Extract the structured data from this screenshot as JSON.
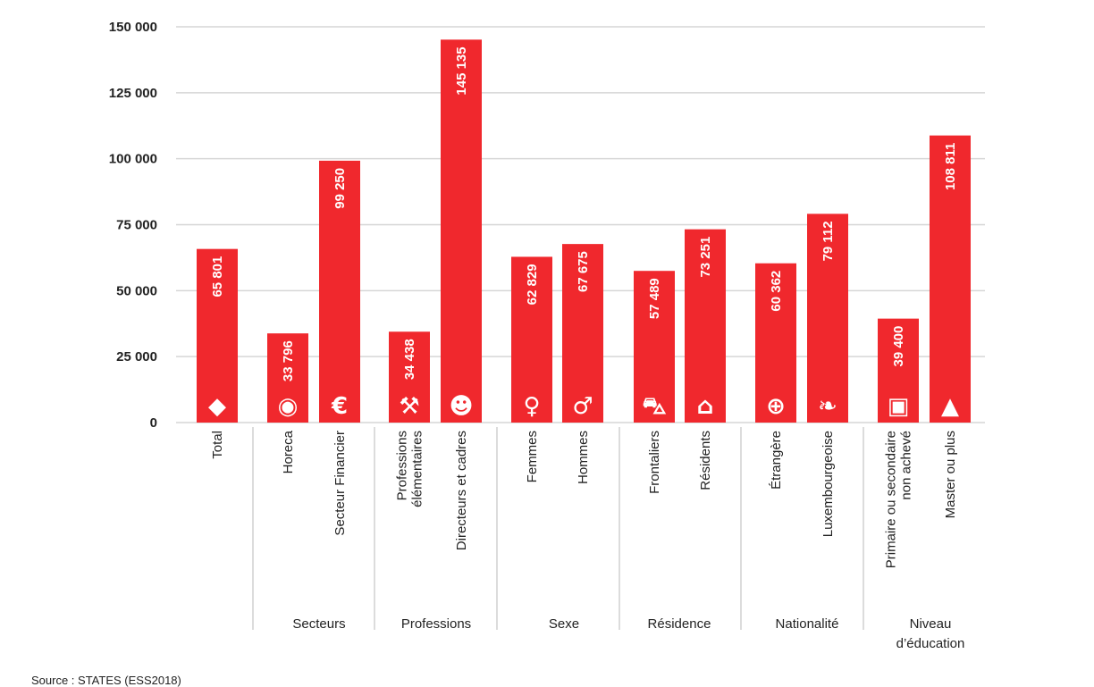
{
  "chart_data": {
    "type": "bar",
    "title": "",
    "xlabel": "",
    "ylabel": "",
    "ylim": [
      0,
      150000
    ],
    "yticks": [
      0,
      25000,
      50000,
      75000,
      100000,
      125000,
      150000
    ],
    "ytick_labels": [
      "0",
      "25 000",
      "50 000",
      "75 000",
      "100 000",
      "125 000",
      "150 000"
    ],
    "grid": true,
    "bar_color": "#f0282d",
    "categories": [
      {
        "label": [
          "Total"
        ],
        "value": 65801,
        "value_label": "65 801",
        "icon": "luxembourg-map-icon",
        "bold": true,
        "group": 0
      },
      {
        "label": [
          "Horeca"
        ],
        "value": 33796,
        "value_label": "33 796",
        "icon": "plate-cutlery-icon",
        "group": 1
      },
      {
        "label": [
          "Secteur Financier"
        ],
        "value": 99250,
        "value_label": "99 250",
        "icon": "euro-icon",
        "group": 1
      },
      {
        "label": [
          "Professions",
          "élémentaires"
        ],
        "value": 34438,
        "value_label": "34 438",
        "icon": "tools-icon",
        "group": 2
      },
      {
        "label": [
          "Directeurs et cadres"
        ],
        "value": 145135,
        "value_label": "145 135",
        "icon": "manager-icon",
        "group": 2
      },
      {
        "label": [
          "Femmes"
        ],
        "value": 62829,
        "value_label": "62 829",
        "icon": "female-icon",
        "group": 3
      },
      {
        "label": [
          "Hommes"
        ],
        "value": 67675,
        "value_label": "67 675",
        "icon": "male-icon",
        "group": 3
      },
      {
        "label": [
          "Frontaliers"
        ],
        "value": 57489,
        "value_label": "57 489",
        "icon": "car-icon",
        "group": 4
      },
      {
        "label": [
          "Résidents"
        ],
        "value": 73251,
        "value_label": "73 251",
        "icon": "house-icon",
        "group": 4
      },
      {
        "label": [
          "Étrangère"
        ],
        "value": 60362,
        "value_label": "60 362",
        "icon": "globe-icon",
        "group": 5
      },
      {
        "label": [
          "Luxembourgeoise"
        ],
        "value": 79112,
        "value_label": "79 112",
        "icon": "lion-icon",
        "group": 5
      },
      {
        "label": [
          "Primaire ou secondaire",
          "non achevé"
        ],
        "value": 39400,
        "value_label": "39 400",
        "icon": "backpack-icon",
        "group": 6
      },
      {
        "label": [
          "Master ou plus"
        ],
        "value": 108811,
        "value_label": "108 811",
        "icon": "graduation-cap-icon",
        "group": 6
      }
    ],
    "groups": [
      {
        "label": [
          ""
        ]
      },
      {
        "label": [
          "Secteurs"
        ]
      },
      {
        "label": [
          "Professions"
        ]
      },
      {
        "label": [
          "Sexe"
        ]
      },
      {
        "label": [
          "Résidence"
        ]
      },
      {
        "label": [
          "Nationalité"
        ]
      },
      {
        "label": [
          "Niveau",
          "d’éducation"
        ]
      }
    ]
  },
  "source": "Source : STATES (ESS2018)"
}
